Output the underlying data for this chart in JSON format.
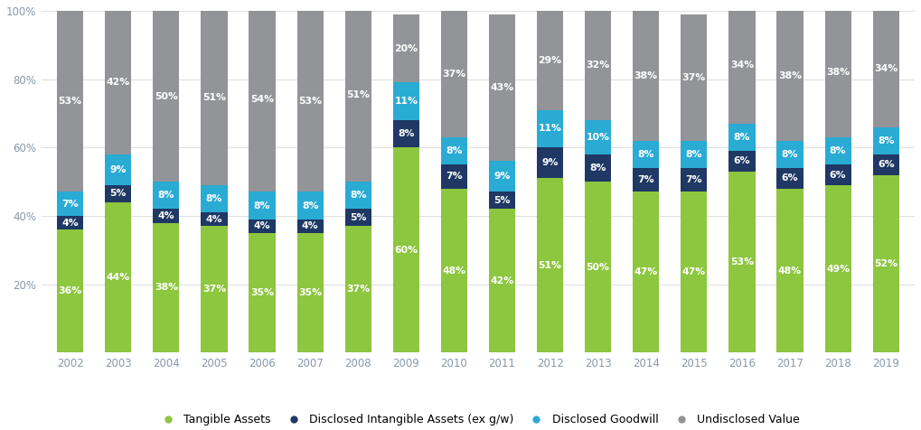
{
  "years": [
    2002,
    2003,
    2004,
    2005,
    2006,
    2007,
    2008,
    2009,
    2010,
    2011,
    2012,
    2013,
    2014,
    2015,
    2016,
    2017,
    2018,
    2019
  ],
  "tangible": [
    36,
    44,
    38,
    37,
    35,
    35,
    37,
    60,
    48,
    42,
    51,
    50,
    47,
    47,
    53,
    48,
    49,
    52
  ],
  "disclosed_intangible": [
    4,
    5,
    4,
    4,
    4,
    4,
    5,
    8,
    7,
    5,
    9,
    8,
    7,
    7,
    6,
    6,
    6,
    6
  ],
  "disclosed_goodwill": [
    7,
    9,
    8,
    8,
    8,
    8,
    8,
    11,
    8,
    9,
    11,
    10,
    8,
    8,
    8,
    8,
    8,
    8
  ],
  "undisclosed": [
    53,
    42,
    50,
    51,
    54,
    53,
    51,
    20,
    37,
    43,
    29,
    32,
    38,
    37,
    34,
    38,
    38,
    34
  ],
  "color_tangible": "#8DC63F",
  "color_disclosed_intangible": "#1F3864",
  "color_disclosed_goodwill": "#29ABD4",
  "color_undisclosed": "#929497",
  "ylim": [
    0,
    100
  ],
  "legend_labels": [
    "Tangible Assets",
    "Disclosed Intangible Assets (ex g/w)",
    "Disclosed Goodwill",
    "Undisclosed Value"
  ],
  "background_color": "#ffffff",
  "label_fontsize": 7.8,
  "tick_fontsize": 8.5,
  "tick_color": "#8899AA",
  "bar_width": 0.55
}
